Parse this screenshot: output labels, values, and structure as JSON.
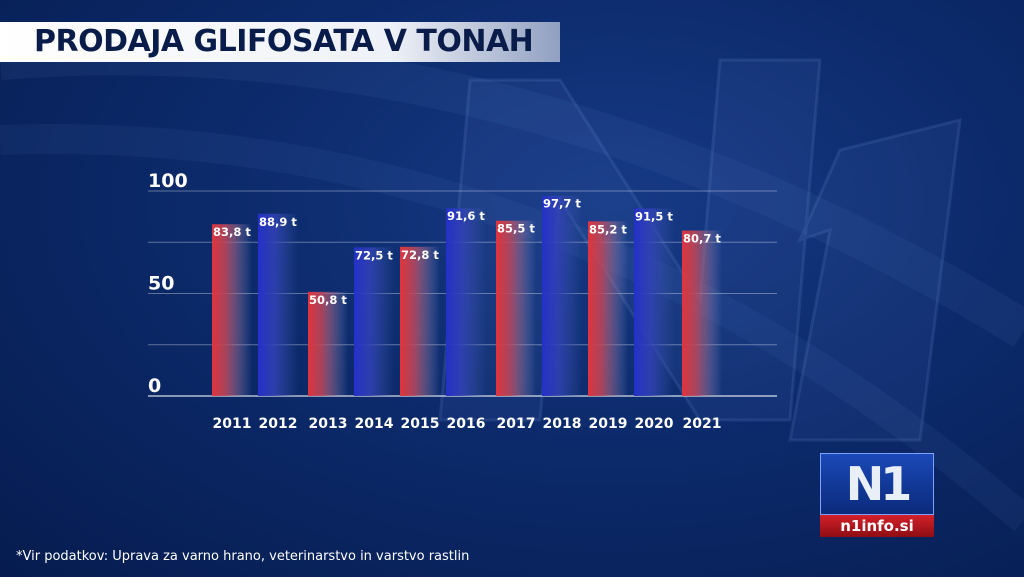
{
  "title": "PRODAJA GLIFOSATA V TONAH",
  "source": "*Vir podatkov: Uprava za varno hrano, veterinarstvo in varstvo rastlin",
  "logo": {
    "mark": "N1",
    "site": "n1info.si"
  },
  "colors": {
    "red": "#d8323c",
    "blue": "#2a3bc0",
    "background": "#0c2a6b"
  },
  "chart_data": {
    "type": "bar",
    "title": "PRODAJA GLIFOSATA V TONAH",
    "categories": [
      "2011",
      "2012",
      "2013",
      "2014",
      "2015",
      "2016",
      "2017",
      "2018",
      "2019",
      "2020",
      "2021"
    ],
    "values": [
      83.8,
      88.9,
      50.8,
      72.5,
      72.8,
      91.6,
      85.5,
      97.7,
      85.2,
      91.5,
      80.7
    ],
    "data_labels": [
      "83,8 t",
      "88,9 t",
      "50,8 t",
      "72,5 t",
      "72,8 t",
      "91,6 t",
      "85,5 t",
      "97,7 t",
      "85,2 t",
      "91,5 t",
      "80,7 t"
    ],
    "bar_colors": [
      "red",
      "blue",
      "red",
      "blue",
      "red",
      "blue",
      "red",
      "blue",
      "red",
      "blue",
      "red"
    ],
    "ylim": [
      0,
      100
    ],
    "yticks": [
      "0",
      "50",
      "100"
    ],
    "grid": true,
    "unit": "t"
  }
}
